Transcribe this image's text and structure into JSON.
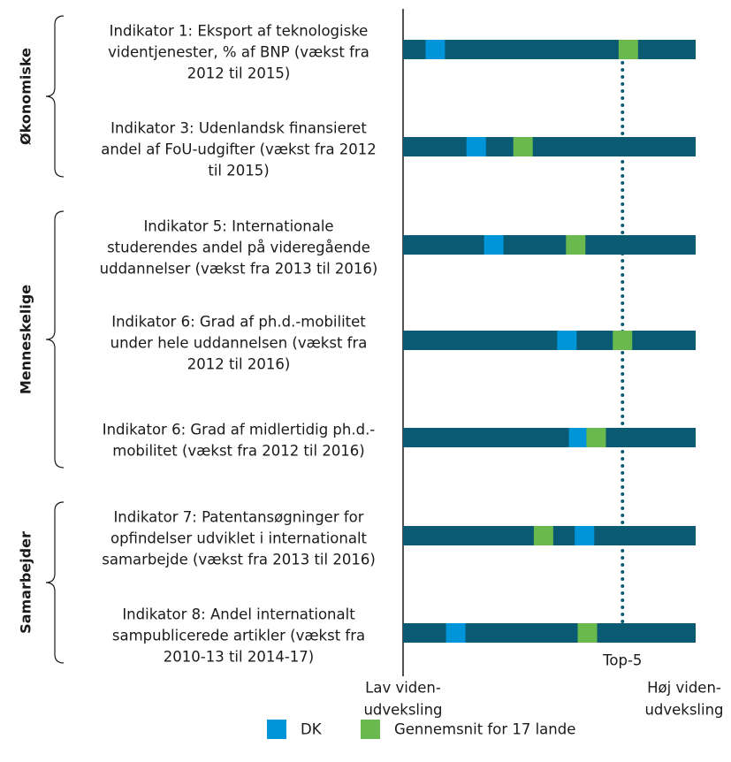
{
  "chart_data": {
    "type": "dotbar",
    "groups": [
      {
        "name": "Økonomiske",
        "rows": [
          0,
          1
        ]
      },
      {
        "name": "Menneskelige",
        "rows": [
          2,
          3,
          4
        ]
      },
      {
        "name": "Samarbejder",
        "rows": [
          5,
          6
        ]
      }
    ],
    "categories": [
      [
        "Indikator 1: Eksport af teknologiske",
        "videntjenester, % af BNP (vækst fra",
        "2012 til 2015)"
      ],
      [
        "Indikator 3: Udenlandsk finansieret",
        "andel af FoU-udgifter (vækst fra 2012",
        "til 2015)"
      ],
      [
        "Indikator 5: Internationale",
        "studerendes andel på videregående",
        "uddannelser (vækst fra 2013 til 2016)"
      ],
      [
        "Indikator 6: Grad af ph.d.-mobilitet",
        "under hele uddannelsen (vækst fra",
        "2012 til 2016)"
      ],
      [
        "Indikator 6: Grad af midlertidig ph.d.-",
        "mobilitet (vækst fra 2012 til 2016)"
      ],
      [
        "Indikator 7: Patentansøgninger for",
        "opfindelser udviklet i internationalt",
        "samarbejde (vækst fra 2013 til 2016)"
      ],
      [
        "Indikator 8: Andel internationalt",
        "sampublicerede artikler (vækst fra",
        "2010-13 til 2014-17)"
      ]
    ],
    "series": [
      {
        "name": "DK",
        "color": "#0095d9",
        "values": [
          11,
          25,
          31,
          56,
          60,
          62,
          18
        ]
      },
      {
        "name": "Gennemsnit for 17 lande",
        "color": "#6ab94e",
        "values": [
          77,
          41,
          59,
          75,
          66,
          48,
          63
        ]
      }
    ],
    "bar_color": "#0b5a73",
    "xlim": [
      0,
      100
    ],
    "reference": {
      "label": "Top-5",
      "value": 75
    },
    "x_min_label": [
      "Lav viden-",
      "udveksling"
    ],
    "x_max_label": [
      "Høj viden-",
      "udveksling"
    ]
  }
}
